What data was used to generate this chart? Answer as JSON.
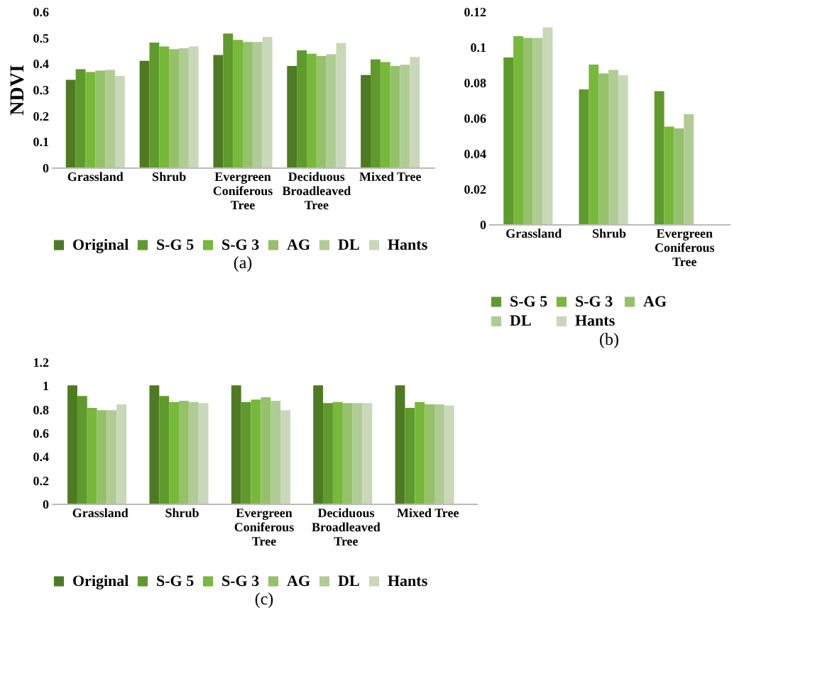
{
  "chart_data": [
    {
      "type": "bar",
      "title": "(a)",
      "ylabel": "NDVI",
      "categories": [
        "Grassland",
        "Shrub",
        "Evergreen Coniferous Tree",
        "Deciduous Broadleaved Tree",
        "Mixed Tree"
      ],
      "ylim": [
        0,
        0.6
      ],
      "yticks": [
        0,
        0.1,
        0.2,
        0.3,
        0.4,
        0.5,
        0.6
      ],
      "grid": false,
      "legend": "bottom",
      "series": [
        {
          "name": "Original",
          "color": "#4e7a22",
          "values": [
            0.337,
            0.41,
            0.432,
            0.39,
            0.355
          ]
        },
        {
          "name": "S-G 5",
          "color": "#5f9a2c",
          "values": [
            0.378,
            0.48,
            0.515,
            0.45,
            0.415
          ]
        },
        {
          "name": "S-G 3",
          "color": "#78b83a",
          "values": [
            0.367,
            0.465,
            0.49,
            0.437,
            0.405
          ]
        },
        {
          "name": "AG",
          "color": "#95c16a",
          "values": [
            0.372,
            0.455,
            0.482,
            0.428,
            0.39
          ]
        },
        {
          "name": "DL",
          "color": "#b0cc95",
          "values": [
            0.375,
            0.458,
            0.482,
            0.435,
            0.395
          ]
        },
        {
          "name": "Hants",
          "color": "#c8d8b8",
          "values": [
            0.352,
            0.465,
            0.502,
            0.478,
            0.425
          ]
        }
      ]
    },
    {
      "type": "bar",
      "title": "(b)",
      "categories": [
        "Grassland",
        "Shrub",
        "Evergreen Coniferous Tree"
      ],
      "ylim": [
        0,
        0.12
      ],
      "yticks": [
        0,
        0.02,
        0.04,
        0.06,
        0.08,
        0.1,
        0.12
      ],
      "grid": false,
      "legend": "bottom",
      "series": [
        {
          "name": "S-G 5",
          "color": "#5f9a2c",
          "values": [
            0.094,
            0.076,
            0.075
          ]
        },
        {
          "name": "S-G 3",
          "color": "#78b83a",
          "values": [
            0.106,
            0.09,
            0.055
          ]
        },
        {
          "name": "AG",
          "color": "#95c16a",
          "values": [
            0.105,
            0.085,
            0.054
          ]
        },
        {
          "name": "DL",
          "color": "#b0cc95",
          "values": [
            0.105,
            0.087,
            0.062
          ]
        },
        {
          "name": "Hants",
          "color": "#c8d8b8",
          "values": [
            0.111,
            0.084,
            null
          ]
        }
      ]
    },
    {
      "type": "bar",
      "title": "(c)",
      "categories": [
        "Grassland",
        "Shrub",
        "Evergreen Coniferous Tree",
        "Deciduous Broadleaved Tree",
        "Mixed Tree"
      ],
      "ylim": [
        0,
        1.2
      ],
      "yticks": [
        0,
        0.2,
        0.4,
        0.6,
        0.8,
        1,
        1.2
      ],
      "grid": false,
      "legend": "bottom",
      "series": [
        {
          "name": "Original",
          "color": "#4e7a22",
          "values": [
            1.0,
            1.0,
            1.0,
            1.0,
            1.0
          ]
        },
        {
          "name": "S-G 5",
          "color": "#5f9a2c",
          "values": [
            0.91,
            0.91,
            0.86,
            0.85,
            0.81
          ]
        },
        {
          "name": "S-G 3",
          "color": "#78b83a",
          "values": [
            0.81,
            0.86,
            0.88,
            0.86,
            0.86
          ]
        },
        {
          "name": "AG",
          "color": "#95c16a",
          "values": [
            0.79,
            0.87,
            0.9,
            0.85,
            0.84
          ]
        },
        {
          "name": "DL",
          "color": "#b0cc95",
          "values": [
            0.79,
            0.86,
            0.87,
            0.85,
            0.84
          ]
        },
        {
          "name": "Hants",
          "color": "#c8d8b8",
          "values": [
            0.84,
            0.85,
            0.79,
            0.85,
            0.83
          ]
        }
      ]
    }
  ]
}
